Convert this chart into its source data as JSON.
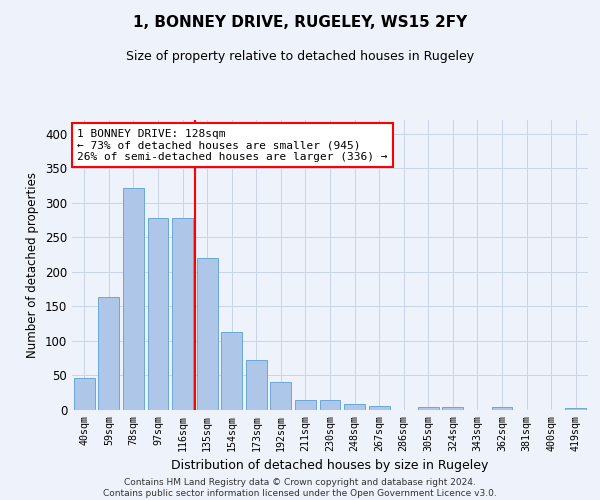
{
  "title": "1, BONNEY DRIVE, RUGELEY, WS15 2FY",
  "subtitle": "Size of property relative to detached houses in Rugeley",
  "xlabel": "Distribution of detached houses by size in Rugeley",
  "ylabel": "Number of detached properties",
  "footer_line1": "Contains HM Land Registry data © Crown copyright and database right 2024.",
  "footer_line2": "Contains public sector information licensed under the Open Government Licence v3.0.",
  "categories": [
    "40sqm",
    "59sqm",
    "78sqm",
    "97sqm",
    "116sqm",
    "135sqm",
    "154sqm",
    "173sqm",
    "192sqm",
    "211sqm",
    "230sqm",
    "248sqm",
    "267sqm",
    "286sqm",
    "305sqm",
    "324sqm",
    "343sqm",
    "362sqm",
    "381sqm",
    "400sqm",
    "419sqm"
  ],
  "values": [
    47,
    163,
    321,
    278,
    278,
    220,
    113,
    72,
    40,
    15,
    15,
    9,
    6,
    0,
    4,
    4,
    0,
    4,
    0,
    0,
    3
  ],
  "bar_color": "#aec6e8",
  "bar_edge_color": "#5a9fd4",
  "grid_color": "#c8d4e8",
  "background_color": "#eef2fa",
  "vline_x": 4.5,
  "annotation_text": "1 BONNEY DRIVE: 128sqm\n← 73% of detached houses are smaller (945)\n26% of semi-detached houses are larger (336) →",
  "annotation_box_color": "white",
  "annotation_box_edge_color": "red",
  "vline_color": "red",
  "ylim": [
    0,
    420
  ],
  "yticks": [
    0,
    50,
    100,
    150,
    200,
    250,
    300,
    350,
    400
  ]
}
